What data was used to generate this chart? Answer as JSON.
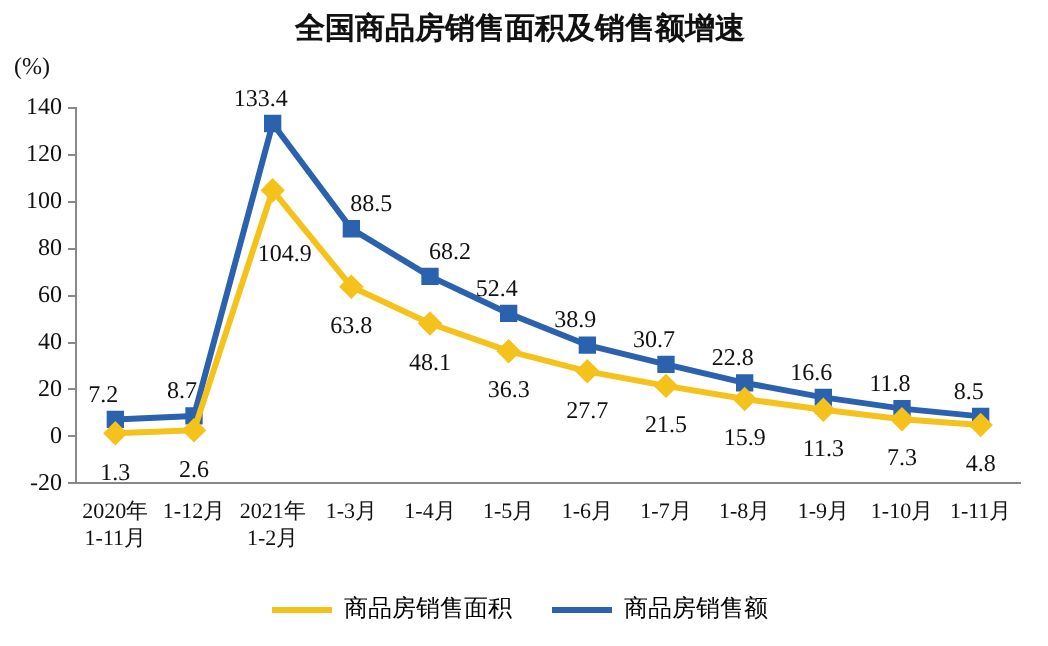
{
  "chart_data": {
    "type": "line",
    "title": "全国商品房销售面积及销售额增速",
    "ylabel": "(%)",
    "categories": [
      "2020年\n1-11月",
      "1-12月",
      "2021年\n1-2月",
      "1-3月",
      "1-4月",
      "1-5月",
      "1-6月",
      "1-7月",
      "1-8月",
      "1-9月",
      "1-10月",
      "1-11月"
    ],
    "series": [
      {
        "name": "商品房销售面积",
        "color": "#f5c21b",
        "marker": "diamond",
        "values": [
          1.3,
          2.6,
          104.9,
          63.8,
          48.1,
          36.3,
          27.7,
          21.5,
          15.9,
          11.3,
          7.3,
          4.8
        ]
      },
      {
        "name": "商品房销售额",
        "color": "#2a62ad",
        "marker": "square",
        "values": [
          7.2,
          8.7,
          133.4,
          88.5,
          68.2,
          52.4,
          38.9,
          30.7,
          22.8,
          16.6,
          11.8,
          8.5
        ]
      }
    ],
    "ylim": [
      -20,
      140
    ],
    "yticks": [
      -20,
      0,
      20,
      40,
      60,
      80,
      100,
      120,
      140
    ],
    "grid": false,
    "legend": "bottom",
    "data_labels": true,
    "line_style": "solid"
  }
}
